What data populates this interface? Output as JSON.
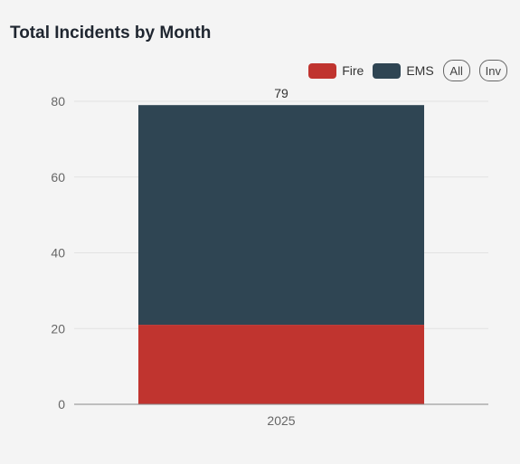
{
  "header": {
    "title": "Total Incidents by Month"
  },
  "legend": {
    "items": [
      {
        "label": "Fire",
        "color": "#c0342f"
      },
      {
        "label": "EMS",
        "color": "#2f4553"
      }
    ],
    "all_label": "All",
    "inv_label": "Inv"
  },
  "chart_data": {
    "type": "bar",
    "stacked": true,
    "title": "Total Incidents by Month",
    "xlabel": "",
    "ylabel": "",
    "categories": [
      "2025"
    ],
    "series": [
      {
        "name": "Fire",
        "values": [
          21
        ],
        "color": "#c0342f"
      },
      {
        "name": "EMS",
        "values": [
          58
        ],
        "color": "#2f4553"
      }
    ],
    "totals": [
      79
    ],
    "ylim": [
      0,
      80
    ],
    "yticks": [
      0,
      20,
      40,
      60,
      80
    ],
    "grid": true,
    "legend_position": "top-right"
  }
}
